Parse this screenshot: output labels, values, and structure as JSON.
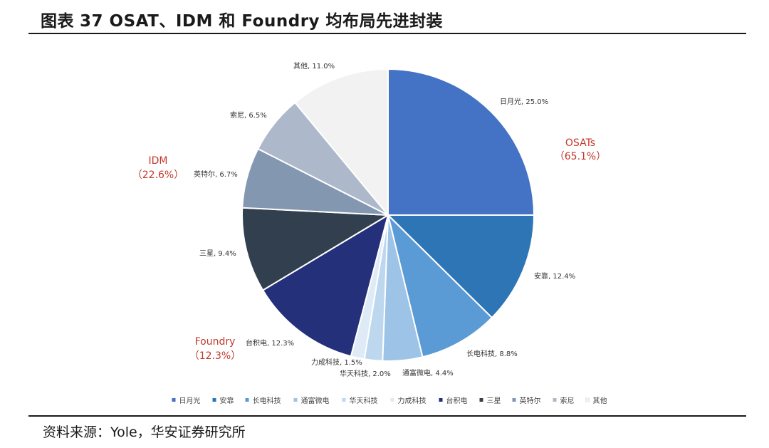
{
  "figure": {
    "title_prefix": "图表",
    "title_number": "37",
    "title_text": "OSAT、IDM 和 Foundry 均布局先进封装",
    "source": "资料来源：Yole，华安证券研究所"
  },
  "chart_data": {
    "type": "pie",
    "title": "",
    "start_angle_deg": 0,
    "direction": "clockwise",
    "slices": [
      {
        "name": "日月光",
        "value": 25.0,
        "label": "日月光, 25.0%",
        "color": "#4472C4"
      },
      {
        "name": "安靠",
        "value": 12.4,
        "label": "安靠, 12.4%",
        "color": "#2E75B6"
      },
      {
        "name": "长电科技",
        "value": 8.8,
        "label": "长电科技, 8.8%",
        "color": "#5B9BD5"
      },
      {
        "name": "通富微电",
        "value": 4.4,
        "label": "通富微电, 4.4%",
        "color": "#9DC3E6"
      },
      {
        "name": "华天科技",
        "value": 2.0,
        "label": "华天科技, 2.0%",
        "color": "#BDD7EE"
      },
      {
        "name": "力成科技",
        "value": 1.5,
        "label": "力成科技, 1.5%",
        "color": "#DEEBF7"
      },
      {
        "name": "台积电",
        "value": 12.3,
        "label": "台积电, 12.3%",
        "color": "#24307A"
      },
      {
        "name": "三星",
        "value": 9.4,
        "label": "三星, 9.4%",
        "color": "#323F4F"
      },
      {
        "name": "英特尔",
        "value": 6.7,
        "label": "英特尔, 6.7%",
        "color": "#8497B0"
      },
      {
        "name": "索尼",
        "value": 6.5,
        "label": "索尼, 6.5%",
        "color": "#ADB9CA"
      },
      {
        "name": "其他",
        "value": 11.0,
        "label": "其他, 11.0%",
        "color": "#F2F2F2"
      }
    ],
    "groups": [
      {
        "name": "OSATs",
        "share": "（65.1%）",
        "color": "#C0392B"
      },
      {
        "name": "IDM",
        "share": "（22.6%）",
        "color": "#C0392B"
      },
      {
        "name": "Foundry",
        "share": "（12.3%）",
        "color": "#C0392B"
      }
    ],
    "legend": {
      "placement": "bottom",
      "entries": [
        "日月光",
        "安靠",
        "长电科技",
        "通富微电",
        "华天科技",
        "力成科技",
        "台积电",
        "三星",
        "英特尔",
        "索尼",
        "其他"
      ]
    }
  }
}
